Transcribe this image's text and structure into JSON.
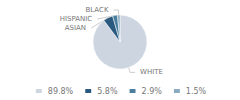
{
  "chart_data": {
    "type": "pie",
    "categories": [
      "WHITE",
      "ASIAN",
      "HISPANIC",
      "BLACK"
    ],
    "values": [
      89.8,
      5.8,
      2.9,
      1.5
    ],
    "value_labels": [
      "89.8%",
      "5.8%",
      "2.9%",
      "1.5%"
    ],
    "colors": [
      "#cdd5e0",
      "#2a5980",
      "#4a7fa0",
      "#8aaabf"
    ],
    "legend": "bottom"
  }
}
